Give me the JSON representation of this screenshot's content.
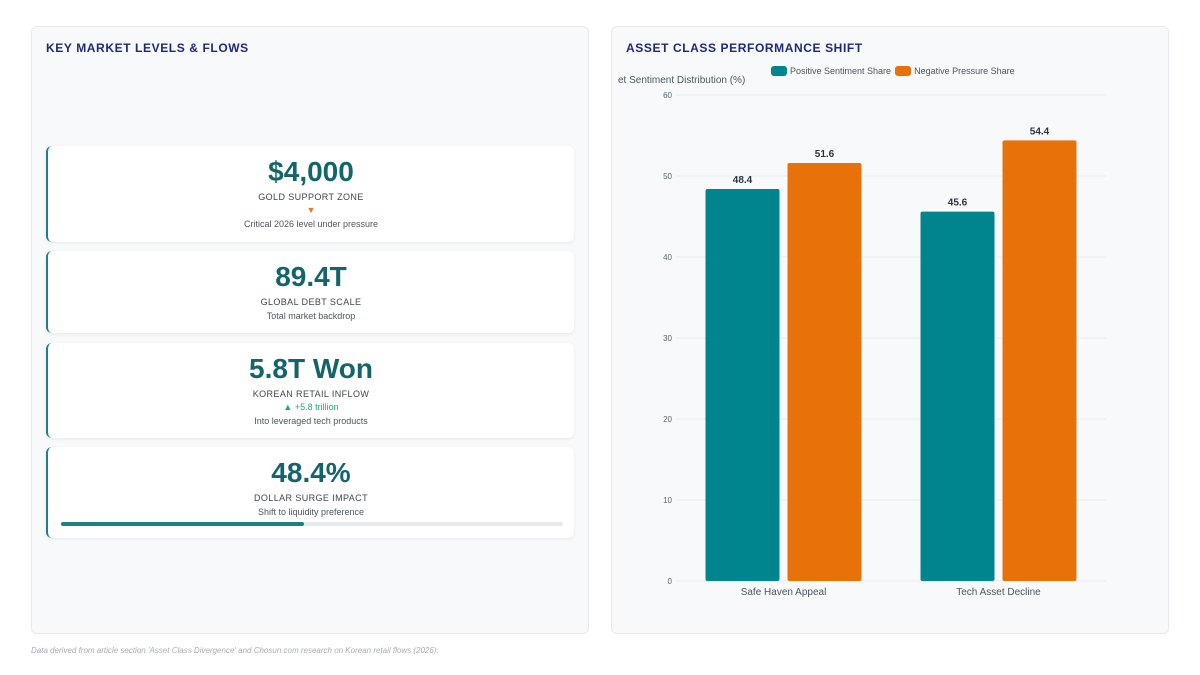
{
  "left_panel": {
    "title": "KEY MARKET LEVELS & FLOWS",
    "kpis": [
      {
        "value": "$4,000",
        "label": "GOLD SUPPORT ZONE",
        "delta": "▼",
        "delta_dir": "down",
        "sub": "Critical 2026 level under pressure"
      },
      {
        "value": "89.4T",
        "label": "GLOBAL DEBT SCALE",
        "sub": "Total market backdrop"
      },
      {
        "value": "5.8T Won",
        "label": "KOREAN RETAIL INFLOW",
        "delta": "▲ +5.8 trillion",
        "delta_dir": "up",
        "sub": "Into leveraged tech products"
      },
      {
        "value": "48.4%",
        "label": "DOLLAR SURGE IMPACT",
        "sub": "Shift to liquidity preference",
        "progress": 48.4
      }
    ]
  },
  "right_panel": {
    "title": "ASSET CLASS PERFORMANCE SHIFT"
  },
  "chart_data": {
    "type": "bar",
    "title": "ASSET CLASS PERFORMANCE SHIFT",
    "ylabel": "et Sentiment Distribution (%)",
    "xlabel": "",
    "categories": [
      "Safe Haven Appeal",
      "Tech Asset Decline"
    ],
    "series": [
      {
        "name": "Positive Sentiment Share",
        "values": [
          48.4,
          45.6
        ],
        "color": "#00858e"
      },
      {
        "name": "Negative Pressure Share",
        "values": [
          51.6,
          54.4
        ],
        "color": "#e8720a"
      }
    ],
    "ylim": [
      0,
      60
    ],
    "yticks": [
      0,
      10,
      20,
      30,
      40,
      50,
      60
    ],
    "legend": "top",
    "grid": true,
    "data_labels": true
  },
  "footnote": "Data derived from article section 'Asset Class Divergence' and Chosun.com research on Korean retail flows (2026).",
  "colors": {
    "accent": "#1f7f86",
    "title": "#1c2b78",
    "down": "#e07a2c",
    "up": "#1aaa7a"
  }
}
